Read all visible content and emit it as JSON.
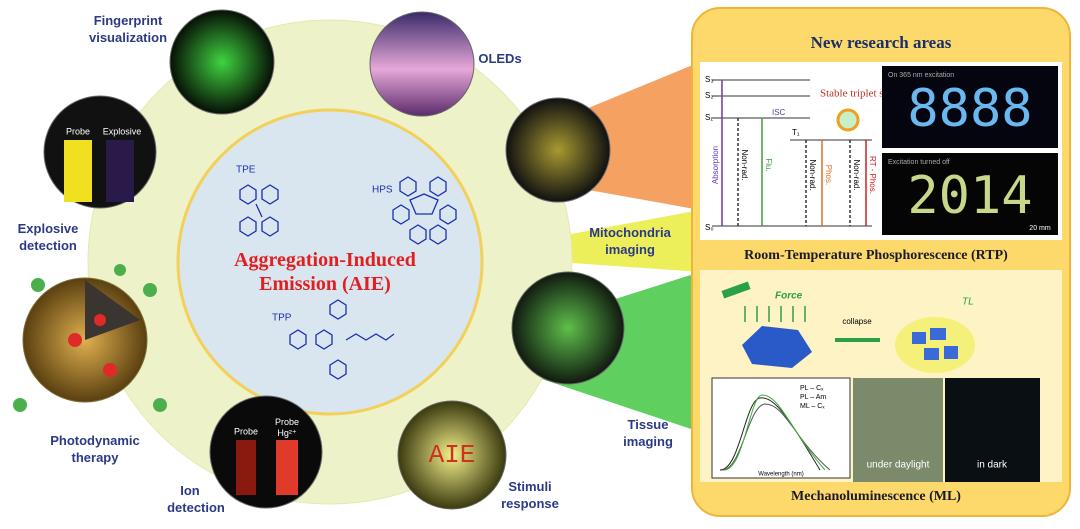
{
  "center": {
    "title": [
      "Aggregation-Induced",
      "Emission (AIE)"
    ],
    "molecules": [
      "TPE",
      "HPS",
      "TPP"
    ]
  },
  "applications": {
    "fingerprint": [
      "Fingerprint",
      "visualization"
    ],
    "oleds": [
      "OLEDs"
    ],
    "mitochondria": [
      "Mitochondria",
      "imaging"
    ],
    "tissue": [
      "Tissue",
      "imaging"
    ],
    "stimuli": [
      "Stimuli",
      "response"
    ],
    "ion": [
      "Ion",
      "detection"
    ],
    "photodynamic": [
      "Photodynamic",
      "therapy"
    ],
    "explosive": [
      "Explosive",
      "detection"
    ]
  },
  "photo_labels": {
    "explosive": [
      "Probe",
      "Explosive"
    ],
    "ion": [
      "Probe",
      "Probe",
      "Hg²⁺"
    ],
    "stimuli": "AIE"
  },
  "panel": {
    "title": "New research areas",
    "rtp": {
      "label": "Room-Temperature Phosphorescence (RTP)",
      "levels": [
        "S₃",
        "S₂",
        "S₁",
        "T₁",
        "S₀"
      ],
      "isc": "ISC",
      "triplet": "Stable triplet state",
      "transitions": [
        "Absorption",
        "Non-rad.",
        "Flu.",
        "Non-rad.",
        "Phos.",
        "Non-rad.",
        "RT - Phos."
      ],
      "on_caption": "On 365 nm excitation",
      "on_display": "8888",
      "off_caption": "Excitation turned off",
      "off_display": "2014",
      "scale": "20 mm"
    },
    "ml": {
      "label": "Mechanoluminescence (ML)",
      "force": "Force",
      "collapse": "collapse",
      "tl": "TL",
      "legend": [
        "PL – Cₓ",
        "PL – Am",
        "ML – Cₓ"
      ],
      "xlabel": "Wavelength (nm)",
      "daylight": "under daylight",
      "dark": "in dark"
    }
  }
}
